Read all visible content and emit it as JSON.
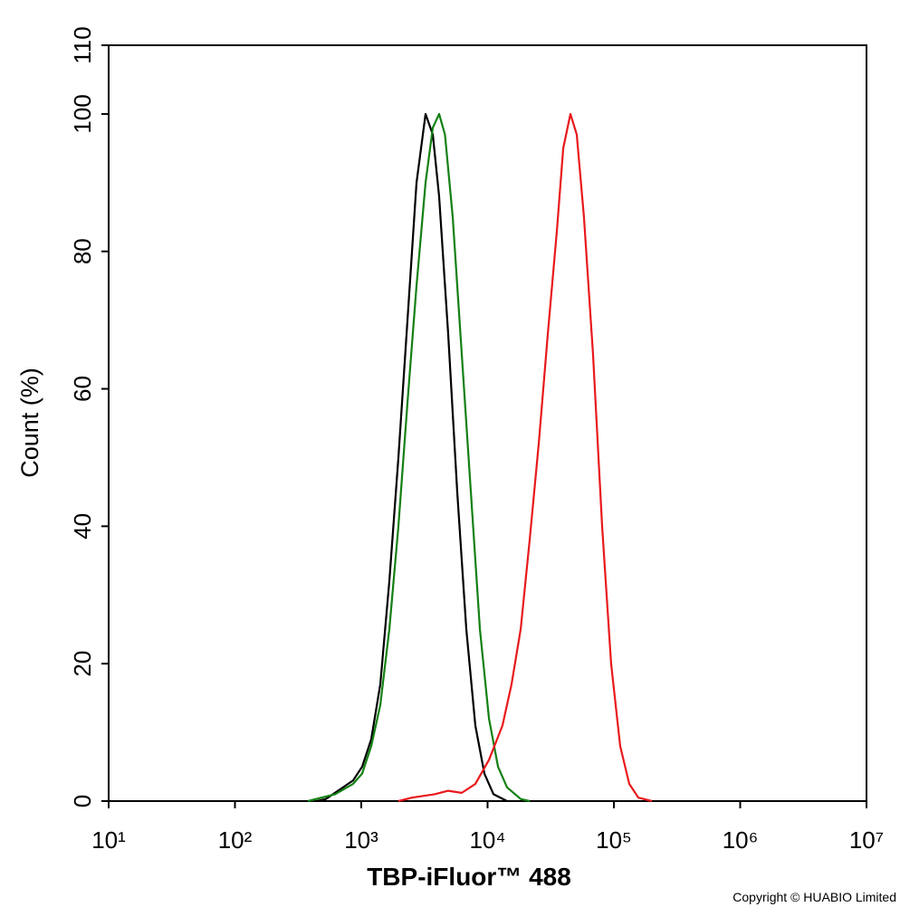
{
  "chart_data": {
    "type": "line",
    "xlabel": "TBP-iFluor™ 488",
    "ylabel": "Count  (%)",
    "copyright": "Copyright © HUABIO Limited",
    "xscale": "log",
    "xlim": [
      10,
      10000000
    ],
    "xticks": [
      {
        "value": 10,
        "label": "10¹"
      },
      {
        "value": 100,
        "label": "10²"
      },
      {
        "value": 1000,
        "label": "10³"
      },
      {
        "value": 10000,
        "label": "10⁴"
      },
      {
        "value": 100000,
        "label": "10⁵"
      },
      {
        "value": 1000000,
        "label": "10⁶"
      },
      {
        "value": 10000000,
        "label": "10⁷"
      }
    ],
    "ylim": [
      0,
      110
    ],
    "yticks": [
      0,
      20,
      40,
      60,
      80,
      100,
      110
    ],
    "series": [
      {
        "color": "#000000",
        "x": [
          446,
          525,
          861,
          1016,
          1199,
          1415,
          1668,
          1968,
          2322,
          2738,
          3229,
          3685,
          4134,
          4876,
          5752,
          6787,
          8000,
          9440,
          11140,
          14260
        ],
        "values": [
          0,
          0.3,
          3,
          5,
          9,
          17,
          32,
          50,
          70,
          90,
          100,
          97,
          88,
          68,
          45,
          25,
          11,
          4,
          1,
          0
        ]
      },
      {
        "color": "#138013",
        "x": [
          378,
          620,
          861,
          1016,
          1199,
          1415,
          1668,
          1968,
          2322,
          2738,
          3229,
          3685,
          4134,
          4600,
          5297,
          6248,
          7372,
          8696,
          10260,
          12100,
          14260,
          18280,
          21540
        ],
        "values": [
          0,
          1,
          2.5,
          4,
          8,
          14,
          25,
          40,
          58,
          75,
          90,
          98,
          100,
          97,
          85,
          65,
          45,
          25,
          12,
          5,
          2,
          0.3,
          0
        ]
      },
      {
        "color": "#e8191c",
        "x": [
          1968,
          2518,
          3810,
          4876,
          6248,
          8000,
          10260,
          13120,
          15480,
          18280,
          21540,
          25410,
          29990,
          35380,
          39710,
          45290,
          50820,
          57940,
          68390,
          80700,
          95080,
          112200,
          132400,
          156200,
          200000
        ],
        "values": [
          0,
          0.5,
          1,
          1.5,
          1.2,
          2.5,
          6,
          11,
          17,
          25,
          38,
          52,
          68,
          83,
          95,
          100,
          97,
          85,
          65,
          40,
          20,
          8,
          2.5,
          0.5,
          0
        ]
      }
    ]
  }
}
